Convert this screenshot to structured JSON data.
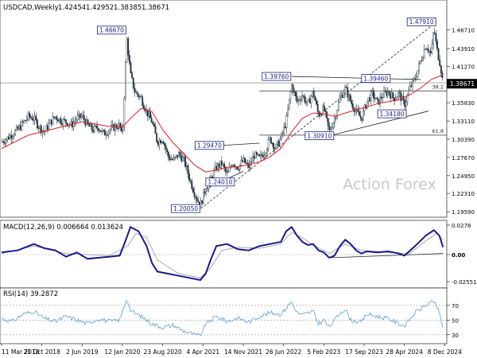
{
  "chart_data": [
    {
      "type": "candlestick",
      "title": "USDCAD,Weekly",
      "ohlc": [
        "1.42454",
        "1.42952",
        "1.38385",
        "1.38671"
      ],
      "last_price": "1.38671",
      "ylim": [
        1.19,
        1.495
      ],
      "yticks": [
        "1.46710",
        "1.43910",
        "1.41270",
        "1.38540",
        "1.35830",
        "1.33110",
        "1.30390",
        "1.27670",
        "1.24950",
        "1.22310",
        "1.19590"
      ],
      "x_ticks": [
        "11 Mar 2018",
        "21 Oct 2018",
        "2 Jun 2019",
        "12 Jan 2020",
        "23 Aug 2020",
        "4 Apr 2021",
        "14 Nov 2021",
        "26 Jun 2022",
        "5 Feb 2023",
        "17 Sep 2023",
        "28 Apr 2024",
        "8 Dec 2024"
      ],
      "x_tick_positions": [
        0,
        7.5,
        15,
        22.5,
        30,
        37.5,
        45,
        52.5,
        60,
        67.5,
        75,
        82.5
      ],
      "close_path": [
        [
          0,
          1.3
        ],
        [
          1,
          1.305
        ],
        [
          2,
          1.312
        ],
        [
          3,
          1.318
        ],
        [
          4,
          1.328
        ],
        [
          5,
          1.338
        ],
        [
          6,
          1.335
        ],
        [
          7,
          1.322
        ],
        [
          8,
          1.315
        ],
        [
          9,
          1.328
        ],
        [
          10,
          1.338
        ],
        [
          11,
          1.332
        ],
        [
          12,
          1.33
        ],
        [
          13,
          1.325
        ],
        [
          14,
          1.335
        ],
        [
          15,
          1.338
        ],
        [
          16,
          1.325
        ],
        [
          17,
          1.318
        ],
        [
          18,
          1.322
        ],
        [
          19,
          1.312
        ],
        [
          20,
          1.318
        ],
        [
          21,
          1.322
        ],
        [
          22,
          1.325
        ],
        [
          22.5,
          1.305
        ],
        [
          23.3,
          1.455
        ],
        [
          24,
          1.4
        ],
        [
          24.8,
          1.375
        ],
        [
          26,
          1.365
        ],
        [
          27,
          1.345
        ],
        [
          28,
          1.33
        ],
        [
          29,
          1.3
        ],
        [
          30,
          1.305
        ],
        [
          31,
          1.278
        ],
        [
          32,
          1.272
        ],
        [
          33,
          1.282
        ],
        [
          34,
          1.272
        ],
        [
          35,
          1.245
        ],
        [
          36,
          1.222
        ],
        [
          37,
          1.205
        ],
        [
          38,
          1.23
        ],
        [
          39,
          1.245
        ],
        [
          40,
          1.262
        ],
        [
          41,
          1.268
        ],
        [
          42,
          1.25
        ],
        [
          43,
          1.27
        ],
        [
          44,
          1.262
        ],
        [
          45,
          1.272
        ],
        [
          46,
          1.262
        ],
        [
          47,
          1.28
        ],
        [
          48,
          1.275
        ],
        [
          49,
          1.285
        ],
        [
          50,
          1.305
        ],
        [
          51,
          1.29
        ],
        [
          52,
          1.305
        ],
        [
          53,
          1.33
        ],
        [
          54,
          1.385
        ],
        [
          55,
          1.36
        ],
        [
          56,
          1.37
        ],
        [
          57,
          1.355
        ],
        [
          58,
          1.375
        ],
        [
          59,
          1.34
        ],
        [
          60,
          1.35
        ],
        [
          61,
          1.315
        ],
        [
          62,
          1.335
        ],
        [
          63,
          1.365
        ],
        [
          64,
          1.38
        ],
        [
          65,
          1.36
        ],
        [
          66,
          1.345
        ],
        [
          67,
          1.335
        ],
        [
          68,
          1.36
        ],
        [
          69,
          1.372
        ],
        [
          70,
          1.358
        ],
        [
          71,
          1.37
        ],
        [
          72,
          1.375
        ],
        [
          73,
          1.365
        ],
        [
          74,
          1.372
        ],
        [
          75,
          1.355
        ],
        [
          76,
          1.38
        ],
        [
          77,
          1.395
        ],
        [
          78,
          1.42
        ],
        [
          79,
          1.445
        ],
        [
          80,
          1.43
        ],
        [
          80.5,
          1.47
        ],
        [
          81,
          1.44
        ],
        [
          81.7,
          1.415
        ],
        [
          82.2,
          1.387
        ]
      ],
      "ema_path": [
        [
          0,
          1.29
        ],
        [
          5,
          1.31
        ],
        [
          10,
          1.32
        ],
        [
          15,
          1.33
        ],
        [
          20,
          1.323
        ],
        [
          22.5,
          1.322
        ],
        [
          24,
          1.335
        ],
        [
          26,
          1.35
        ],
        [
          28,
          1.345
        ],
        [
          30,
          1.318
        ],
        [
          32,
          1.298
        ],
        [
          34,
          1.282
        ],
        [
          36,
          1.265
        ],
        [
          38,
          1.255
        ],
        [
          40,
          1.258
        ],
        [
          42,
          1.262
        ],
        [
          44,
          1.263
        ],
        [
          46,
          1.266
        ],
        [
          48,
          1.27
        ],
        [
          50,
          1.278
        ],
        [
          52,
          1.29
        ],
        [
          54,
          1.315
        ],
        [
          56,
          1.335
        ],
        [
          58,
          1.343
        ],
        [
          60,
          1.342
        ],
        [
          62,
          1.338
        ],
        [
          64,
          1.343
        ],
        [
          66,
          1.348
        ],
        [
          68,
          1.352
        ],
        [
          70,
          1.357
        ],
        [
          72,
          1.36
        ],
        [
          74,
          1.363
        ],
        [
          76,
          1.37
        ],
        [
          78,
          1.38
        ],
        [
          80,
          1.393
        ],
        [
          82.2,
          1.4
        ]
      ],
      "ema_period": null,
      "annotations": [
        {
          "label": "1.46670",
          "x": 23.3,
          "y": 1.4667
        },
        {
          "label": "1.20050",
          "x": 37.1,
          "y": 1.2005
        },
        {
          "label": "1.29470",
          "x": 41.5,
          "y": 1.2947
        },
        {
          "label": "1.24010",
          "x": 43.5,
          "y": 1.2401
        },
        {
          "label": "1.39760",
          "x": 54.0,
          "y": 1.3976
        },
        {
          "label": "1.30910",
          "x": 62.0,
          "y": 1.3091
        },
        {
          "label": "1.39460",
          "x": 72.5,
          "y": 1.3946
        },
        {
          "label": "1.34180",
          "x": 75.5,
          "y": 1.3418
        },
        {
          "label": "1.47910",
          "x": 81.0,
          "y": 1.4791
        }
      ],
      "fib_levels": [
        {
          "label": "38.2",
          "y": 1.376
        },
        {
          "label": "61.8",
          "y": 1.31
        }
      ],
      "hline": 1.388,
      "trendlines": [
        {
          "style": "dashed",
          "points": [
            [
              37.1,
              1.2005
            ],
            [
              81.0,
              1.4791
            ]
          ]
        },
        {
          "style": "solid",
          "points": [
            [
              54.0,
              1.3976
            ],
            [
              78.0,
              1.393
            ]
          ]
        },
        {
          "style": "solid",
          "points": [
            [
              61.0,
              1.309
            ],
            [
              79.5,
              1.346
            ]
          ]
        },
        {
          "style": "solid",
          "points": [
            [
              41.0,
              1.2947
            ],
            [
              48.0,
              1.298
            ]
          ]
        },
        {
          "style": "solid",
          "points": [
            [
              37.5,
              1.228
            ],
            [
              45.0,
              1.256
            ]
          ]
        }
      ],
      "watermark": "Action Forex"
    },
    {
      "type": "line",
      "title": "MACD(12,26,9) 0.006664 0.013624",
      "ylim": [
        -0.03,
        0.03
      ],
      "yticks": [
        "0.0278",
        "0.00",
        "-0.025511"
      ],
      "macd_path": [
        [
          0,
          0.002
        ],
        [
          3,
          0.004
        ],
        [
          6,
          0.01
        ],
        [
          8,
          0.006
        ],
        [
          10,
          0.004
        ],
        [
          12,
          -0.002
        ],
        [
          14,
          0.002
        ],
        [
          16,
          -0.004
        ],
        [
          18,
          -0.003
        ],
        [
          20,
          -0.002
        ],
        [
          22,
          -0.001
        ],
        [
          23,
          0.012
        ],
        [
          24,
          0.026
        ],
        [
          25.5,
          0.022
        ],
        [
          27,
          0.008
        ],
        [
          28,
          -0.008
        ],
        [
          29,
          -0.016
        ],
        [
          31,
          -0.018
        ],
        [
          33,
          -0.02
        ],
        [
          35,
          -0.022
        ],
        [
          36,
          -0.023
        ],
        [
          37,
          -0.024
        ],
        [
          38,
          -0.018
        ],
        [
          39,
          -0.004
        ],
        [
          40,
          0.008
        ],
        [
          42,
          0.01
        ],
        [
          44,
          0.005
        ],
        [
          46,
          0.004
        ],
        [
          48,
          0.008
        ],
        [
          50,
          0.01
        ],
        [
          52,
          0.012
        ],
        [
          53,
          0.022
        ],
        [
          54,
          0.026
        ],
        [
          55,
          0.018
        ],
        [
          56,
          0.012
        ],
        [
          57,
          0.009
        ],
        [
          58,
          0.01
        ],
        [
          59,
          0.004
        ],
        [
          60,
          0.002
        ],
        [
          61,
          -0.003
        ],
        [
          62,
          -0.001
        ],
        [
          63,
          0.008
        ],
        [
          64,
          0.014
        ],
        [
          65,
          0.01
        ],
        [
          66,
          0.004
        ],
        [
          67,
          0.001
        ],
        [
          68,
          0.003
        ],
        [
          70,
          0.002
        ],
        [
          72,
          0.003
        ],
        [
          74,
          0.001
        ],
        [
          75,
          -0.001
        ],
        [
          77,
          0.008
        ],
        [
          79,
          0.018
        ],
        [
          80.5,
          0.023
        ],
        [
          81.5,
          0.018
        ],
        [
          82.2,
          0.007
        ]
      ],
      "signal_path": [
        [
          0,
          0.001
        ],
        [
          6,
          0.008
        ],
        [
          12,
          0.001
        ],
        [
          20,
          -0.001
        ],
        [
          23.5,
          0.008
        ],
        [
          25,
          0.02
        ],
        [
          27,
          0.016
        ],
        [
          29,
          -0.005
        ],
        [
          33,
          -0.018
        ],
        [
          37,
          -0.022
        ],
        [
          39,
          -0.012
        ],
        [
          41,
          0.004
        ],
        [
          44,
          0.007
        ],
        [
          48,
          0.006
        ],
        [
          52,
          0.01
        ],
        [
          54,
          0.021
        ],
        [
          56,
          0.016
        ],
        [
          58,
          0.009
        ],
        [
          61,
          0.001
        ],
        [
          64,
          0.01
        ],
        [
          67,
          0.004
        ],
        [
          72,
          0.002
        ],
        [
          76,
          0.001
        ],
        [
          79,
          0.013
        ],
        [
          81,
          0.02
        ],
        [
          82.2,
          0.014
        ]
      ],
      "trendline": [
        [
          61.0,
          -0.003
        ],
        [
          82.2,
          0.001
        ]
      ]
    },
    {
      "type": "line",
      "title": "RSI(14) 39.2872",
      "ylim": [
        0,
        100
      ],
      "yticks": [
        "70",
        "50",
        "30"
      ],
      "rsi_path": [
        [
          0,
          52
        ],
        [
          2,
          48
        ],
        [
          4,
          58
        ],
        [
          6,
          62
        ],
        [
          8,
          52
        ],
        [
          10,
          48
        ],
        [
          12,
          55
        ],
        [
          14,
          50
        ],
        [
          16,
          45
        ],
        [
          18,
          52
        ],
        [
          20,
          48
        ],
        [
          22,
          50
        ],
        [
          23.3,
          80
        ],
        [
          24,
          62
        ],
        [
          26,
          55
        ],
        [
          28,
          45
        ],
        [
          30,
          40
        ],
        [
          32,
          43
        ],
        [
          34,
          35
        ],
        [
          36,
          30
        ],
        [
          37,
          28
        ],
        [
          38,
          45
        ],
        [
          40,
          55
        ],
        [
          42,
          48
        ],
        [
          44,
          53
        ],
        [
          46,
          47
        ],
        [
          48,
          55
        ],
        [
          50,
          60
        ],
        [
          52,
          58
        ],
        [
          54,
          75
        ],
        [
          55,
          60
        ],
        [
          56,
          57
        ],
        [
          58,
          62
        ],
        [
          59,
          45
        ],
        [
          60,
          50
        ],
        [
          61,
          40
        ],
        [
          63,
          60
        ],
        [
          64,
          65
        ],
        [
          65,
          50
        ],
        [
          67,
          47
        ],
        [
          68,
          58
        ],
        [
          70,
          55
        ],
        [
          72,
          52
        ],
        [
          74,
          45
        ],
        [
          75,
          42
        ],
        [
          77,
          60
        ],
        [
          79,
          70
        ],
        [
          80.5,
          75
        ],
        [
          81.5,
          60
        ],
        [
          82.2,
          39
        ]
      ],
      "guides": [
        70,
        50,
        30
      ]
    }
  ]
}
